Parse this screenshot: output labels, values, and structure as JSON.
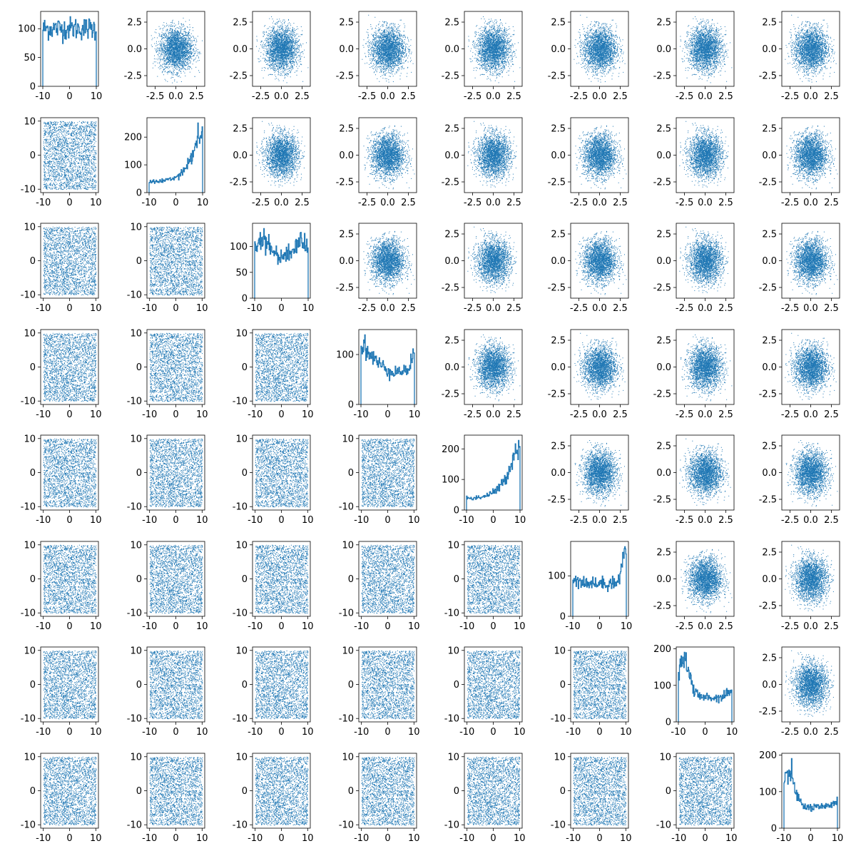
{
  "figure": {
    "rows": 8,
    "cols": 8,
    "marker_color": "#1f77b4",
    "diagonal_type": "histogram",
    "upper_range": [
      -3.5,
      3.5
    ],
    "lower_range": [
      -11,
      11
    ]
  },
  "chart_data": {
    "type": "scatter-matrix",
    "title": "",
    "panels": {
      "upper_triangle": {
        "type": "scatter",
        "xlim": [
          -3.5,
          3.5
        ],
        "ylim": [
          -3.5,
          3.5
        ],
        "x_ticks": [
          "-2.5",
          "0.0",
          "2.5"
        ],
        "y_ticks": [
          "-2.5",
          "0.0",
          "2.5"
        ],
        "distribution": "2D gaussian cloud centred near (0, 0), sd about 1"
      },
      "lower_triangle": {
        "type": "scatter",
        "xlim": [
          -11,
          11
        ],
        "ylim": [
          -11,
          11
        ],
        "x_ticks": [
          "-10",
          "0",
          "10"
        ],
        "y_ticks": [
          "-10",
          "0",
          "10"
        ],
        "distribution": "points filling square [-10, 10] x [-10, 10]"
      },
      "diagonal": [
        {
          "row": 0,
          "shape": "flat",
          "ylim": [
            0,
            130
          ],
          "y_ticks": [
            "0",
            "50",
            "100"
          ],
          "x_ticks": [
            "-10",
            "0",
            "10"
          ]
        },
        {
          "row": 1,
          "shape": "rising",
          "ylim": [
            0,
            270
          ],
          "y_ticks": [
            "0",
            "100",
            "200"
          ],
          "x_ticks": [
            "-10",
            "0",
            "10"
          ]
        },
        {
          "row": 2,
          "shape": "flat-bumpy",
          "ylim": [
            0,
            145
          ],
          "y_ticks": [
            "0",
            "50",
            "100"
          ],
          "x_ticks": [
            "-10",
            "0",
            "10"
          ]
        },
        {
          "row": 3,
          "shape": "u-shape",
          "ylim": [
            0,
            150
          ],
          "y_ticks": [
            "0",
            "100"
          ],
          "x_ticks": [
            "-10",
            "0",
            "10"
          ]
        },
        {
          "row": 4,
          "shape": "rising",
          "ylim": [
            0,
            245
          ],
          "y_ticks": [
            "0",
            "100",
            "200"
          ],
          "x_ticks": [
            "-10",
            "0",
            "10"
          ]
        },
        {
          "row": 5,
          "shape": "rising-end",
          "ylim": [
            0,
            185
          ],
          "y_ticks": [
            "0",
            "100"
          ],
          "x_ticks": [
            "-10",
            "0",
            "10"
          ]
        },
        {
          "row": 6,
          "shape": "falling",
          "ylim": [
            0,
            205
          ],
          "y_ticks": [
            "0",
            "100",
            "200"
          ],
          "x_ticks": [
            "-10",
            "0",
            "10"
          ]
        },
        {
          "row": 7,
          "shape": "falling",
          "ylim": [
            0,
            205
          ],
          "y_ticks": [
            "0",
            "100",
            "200"
          ],
          "x_ticks": [
            "-10",
            "0",
            "10"
          ]
        }
      ]
    }
  }
}
